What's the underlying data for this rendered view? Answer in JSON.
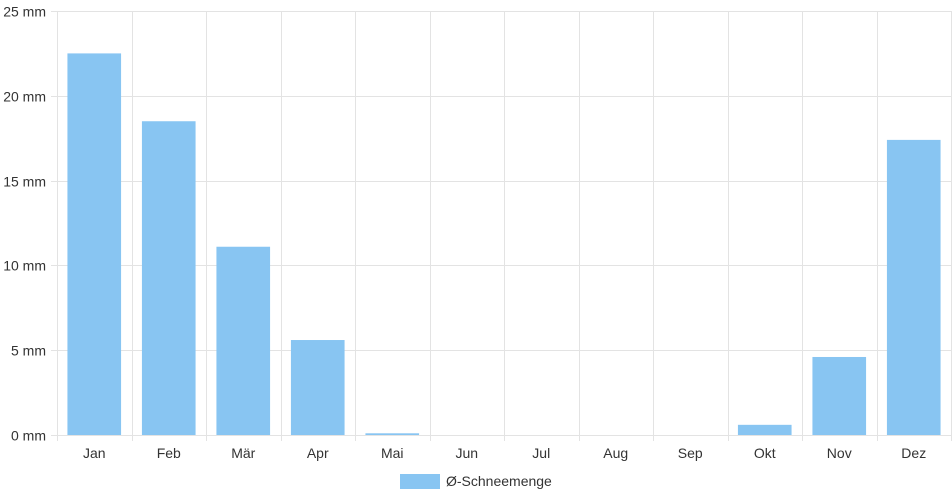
{
  "chart_data": {
    "type": "bar",
    "categories": [
      "Jan",
      "Feb",
      "Mär",
      "Apr",
      "Mai",
      "Jun",
      "Jul",
      "Aug",
      "Sep",
      "Okt",
      "Nov",
      "Dez"
    ],
    "series": [
      {
        "name": "Ø-Schneemenge",
        "values": [
          22.5,
          18.5,
          11.1,
          5.6,
          0.1,
          0,
          0,
          0,
          0,
          0.6,
          4.6,
          17.4
        ],
        "color": "#88c5f2"
      }
    ],
    "ylim": [
      0,
      25
    ],
    "yticks": [
      0,
      5,
      10,
      15,
      20,
      25
    ],
    "ytick_labels": [
      "0 mm",
      "5 mm",
      "10 mm",
      "15 mm",
      "20 mm",
      "25 mm"
    ],
    "grid": true,
    "legend_position": "bottom"
  }
}
